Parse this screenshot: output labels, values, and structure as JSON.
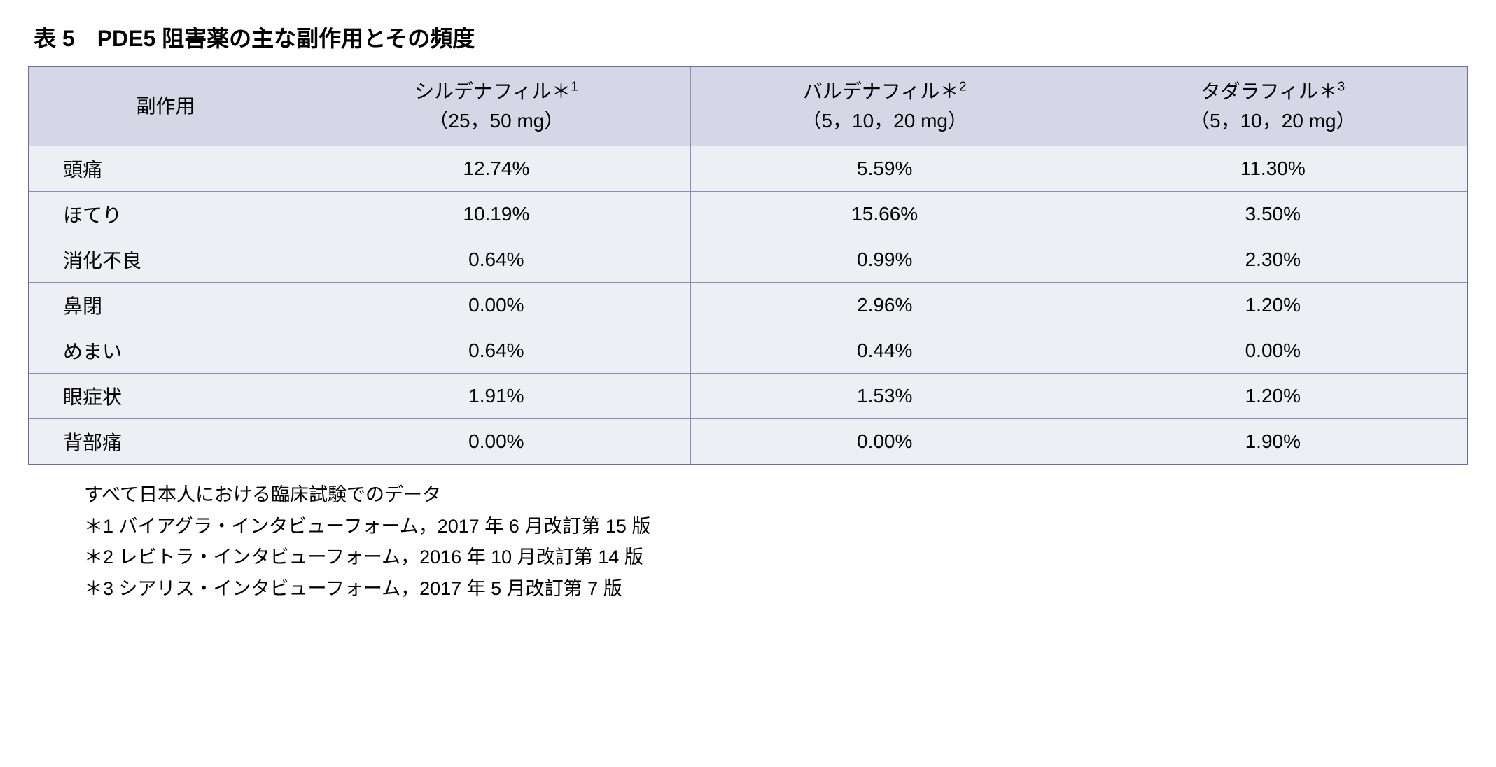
{
  "title": "表 5　PDE5 阻害薬の主な副作用とその頻度",
  "table": {
    "header_bg": "#d5d6e6",
    "body_bg": "#eeeef5",
    "border_color": "#6a6f9e",
    "inner_border_color": "#8a8fb5",
    "columns": [
      {
        "line1": "副作用",
        "line2": ""
      },
      {
        "line1": "シルデナフィル＊",
        "sup": "1",
        "line2": "（25，50 mg）"
      },
      {
        "line1": "バルデナフィル＊",
        "sup": "2",
        "line2": "（5，10，20 mg）"
      },
      {
        "line1": "タダラフィル＊",
        "sup": "3",
        "line2": "（5，10，20 mg）"
      }
    ],
    "rows": [
      {
        "label": "頭痛",
        "v1": "12.74%",
        "v2": "5.59%",
        "v3": "11.30%"
      },
      {
        "label": "ほてり",
        "v1": "10.19%",
        "v2": "15.66%",
        "v3": "3.50%"
      },
      {
        "label": "消化不良",
        "v1": "0.64%",
        "v2": "0.99%",
        "v3": "2.30%"
      },
      {
        "label": "鼻閉",
        "v1": "0.00%",
        "v2": "2.96%",
        "v3": "1.20%"
      },
      {
        "label": "めまい",
        "v1": "0.64%",
        "v2": "0.44%",
        "v3": "0.00%"
      },
      {
        "label": "眼症状",
        "v1": "1.91%",
        "v2": "1.53%",
        "v3": "1.20%"
      },
      {
        "label": "背部痛",
        "v1": "0.00%",
        "v2": "0.00%",
        "v3": "1.90%"
      }
    ],
    "col_widths": [
      "19%",
      "27%",
      "27%",
      "27%"
    ]
  },
  "notes": {
    "lines": [
      "すべて日本人における臨床試験でのデータ",
      "＊1 バイアグラ・インタビューフォーム，2017 年 6 月改訂第 15 版",
      "＊2 レビトラ・インタビューフォーム，2016 年 10 月改訂第 14 版",
      "＊3 シアリス・インタビューフォーム，2017 年 5 月改訂第 7 版"
    ]
  }
}
